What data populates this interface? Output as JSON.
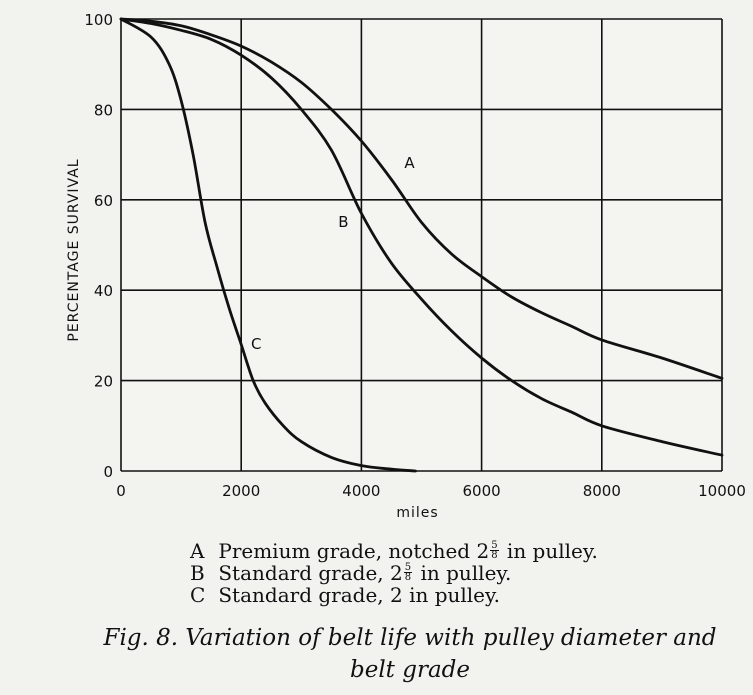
{
  "chart_data": {
    "type": "line",
    "xlabel": "miles",
    "ylabel": "PERCENTAGE SURVIVAL",
    "xlim": [
      0,
      10000
    ],
    "ylim": [
      0,
      100
    ],
    "grid": true,
    "x_ticks": [
      "0",
      "2000",
      "4000",
      "6000",
      "8000",
      "10000"
    ],
    "y_ticks": [
      "0",
      "20",
      "40",
      "60",
      "80",
      "100"
    ],
    "series": [
      {
        "name": "A",
        "x": [
          0,
          500,
          1000,
          1500,
          2000,
          2500,
          3000,
          3500,
          4000,
          4500,
          5000,
          5500,
          6000,
          6500,
          7000,
          7500,
          8000,
          9000,
          10000
        ],
        "y": [
          100,
          99.5,
          98.5,
          96.5,
          94,
          90.5,
          86,
          80,
          73,
          64.5,
          55,
          48,
          43,
          38.5,
          35,
          32,
          29,
          25,
          20.5
        ]
      },
      {
        "name": "B",
        "x": [
          0,
          500,
          1000,
          1500,
          2000,
          2500,
          3000,
          3500,
          4000,
          4500,
          5000,
          5500,
          6000,
          6500,
          7000,
          7500,
          8000,
          9000,
          10000
        ],
        "y": [
          100,
          99,
          97.5,
          95.5,
          92,
          87,
          80,
          71,
          57,
          46,
          38,
          31,
          25,
          20,
          16,
          13,
          10,
          6.5,
          3.5
        ]
      },
      {
        "name": "C",
        "x": [
          0,
          500,
          800,
          1000,
          1200,
          1400,
          1600,
          1800,
          2000,
          2200,
          2400,
          2700,
          3000,
          3500,
          4000,
          4500,
          4900
        ],
        "y": [
          100,
          96,
          90,
          82,
          70,
          55,
          45,
          36,
          28,
          20,
          15,
          10,
          6.5,
          3,
          1.2,
          0.4,
          0
        ]
      }
    ],
    "curve_labels": [
      "A",
      "B",
      "C"
    ]
  },
  "legend": [
    {
      "key": "A",
      "text_before": "Premium grade, notched 2",
      "frac_num": "5",
      "frac_den": "8",
      "text_after": "in pulley."
    },
    {
      "key": "B",
      "text_before": "Standard grade, 2",
      "frac_num": "5",
      "frac_den": "8",
      "text_after": "in pulley."
    },
    {
      "key": "C",
      "text_before": "Standard grade, 2 in pulley.",
      "frac_num": "",
      "frac_den": "",
      "text_after": ""
    }
  ],
  "caption": {
    "line1": "Fig. 8.  Variation of belt life with pulley diameter and",
    "line2": "belt grade"
  }
}
